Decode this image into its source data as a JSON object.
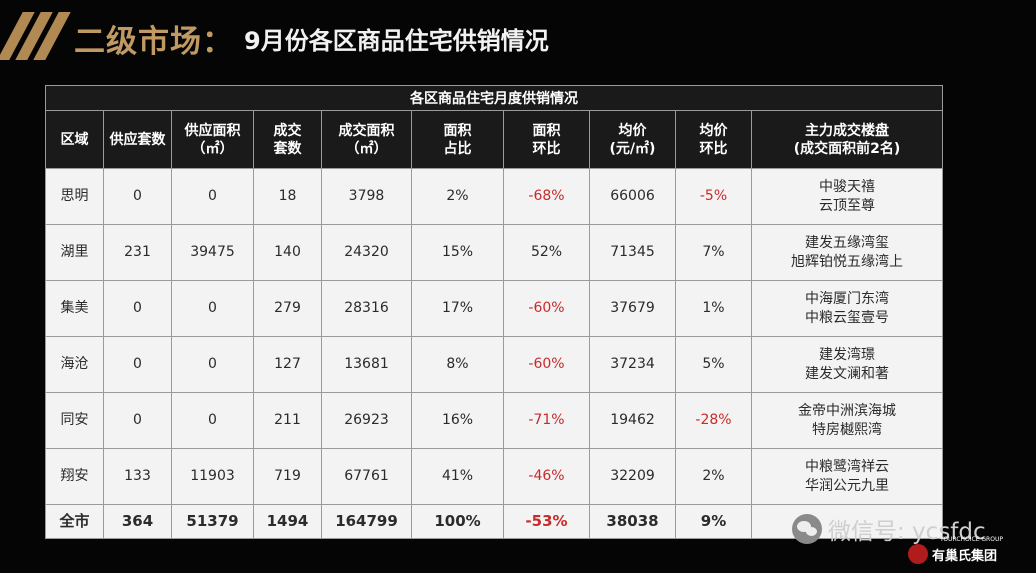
{
  "header": {
    "title_main": "二级市场：",
    "title_sub": "9月份各区商品住宅供销情况"
  },
  "table": {
    "caption": "各区商品住宅月度供销情况",
    "headers": [
      "区域",
      "供应套数",
      "供应面积\n（㎡）",
      "成交\n套数",
      "成交面积\n（㎡）",
      "面积\n占比",
      "面积\n环比",
      "均价\n(元/㎡)",
      "均价\n环比",
      "主力成交楼盘\n(成交面积前2名)"
    ],
    "rows": [
      [
        "思明",
        "0",
        "0",
        "18",
        "3798",
        "2%",
        "-68%",
        "66006",
        "-5%",
        "中骏天禧\n云顶至尊"
      ],
      [
        "湖里",
        "231",
        "39475",
        "140",
        "24320",
        "15%",
        "52%",
        "71345",
        "7%",
        "建发五缘湾玺\n旭辉铂悦五缘湾上"
      ],
      [
        "集美",
        "0",
        "0",
        "279",
        "28316",
        "17%",
        "-60%",
        "37679",
        "1%",
        "中海厦门东湾\n中粮云玺壹号"
      ],
      [
        "海沧",
        "0",
        "0",
        "127",
        "13681",
        "8%",
        "-60%",
        "37234",
        "5%",
        "建发湾璟\n建发文澜和著"
      ],
      [
        "同安",
        "0",
        "0",
        "211",
        "26923",
        "16%",
        "-71%",
        "19462",
        "-28%",
        "金帝中洲滨海城\n特房樾熙湾"
      ],
      [
        "翔安",
        "133",
        "11903",
        "719",
        "67761",
        "41%",
        "-46%",
        "32209",
        "2%",
        "中粮鹭湾祥云\n华润公元九里"
      ]
    ],
    "total": [
      "全市",
      "364",
      "51379",
      "1494",
      "164799",
      "100%",
      "-53%",
      "38038",
      "9%",
      ""
    ]
  },
  "watermark": {
    "icon": "wechat-icon",
    "text": "微信号: ycsfdc"
  },
  "logo": {
    "icon": "logo-mark-icon",
    "text": "有巢氏集团",
    "small_text": "YOURCHOICE GROUP"
  },
  "colors": {
    "title_gold": "#c09a62",
    "negative_red": "#c82b2b",
    "cell_bg": "#f3f3f3",
    "header_bg": "#1a1a1a"
  }
}
